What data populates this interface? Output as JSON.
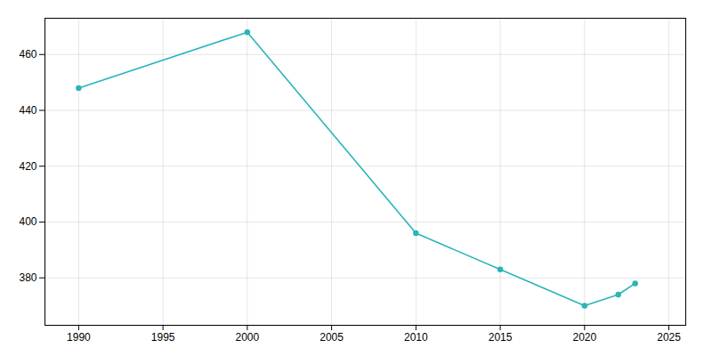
{
  "chart_data": {
    "type": "line",
    "x": [
      1990,
      2000,
      2010,
      2015,
      2020,
      2022,
      2023
    ],
    "values": [
      448,
      468,
      396,
      383,
      370,
      374,
      378
    ],
    "color": "#2ab5b8",
    "marker": "circle",
    "xlim": [
      1988,
      2026
    ],
    "ylim": [
      363,
      473
    ],
    "xticks": [
      1990,
      1995,
      2000,
      2005,
      2010,
      2015,
      2020,
      2025
    ],
    "yticks": [
      380,
      400,
      420,
      440,
      460
    ],
    "grid": true
  }
}
